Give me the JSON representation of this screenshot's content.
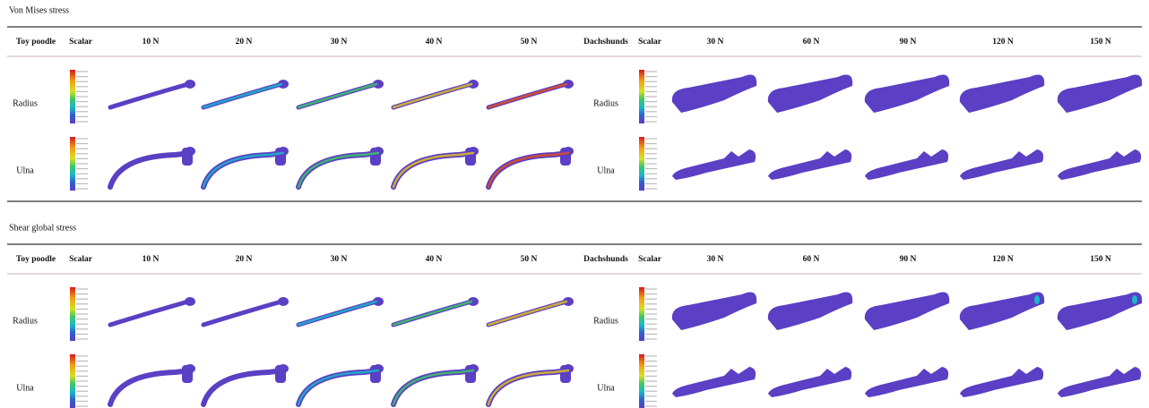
{
  "sections": [
    {
      "title": "Von Mises stress",
      "groups": [
        {
          "breed": "Toy poodle",
          "scalar": "Scalar",
          "forces": [
            "10 N",
            "20 N",
            "30 N",
            "40 N",
            "50 N"
          ],
          "rows": [
            "Radius",
            "Ulna"
          ]
        },
        {
          "breed": "Dachshunds",
          "scalar": "Scalar",
          "forces": [
            "30 N",
            "60 N",
            "90 N",
            "120 N",
            "150 N"
          ],
          "rows": [
            "Radius",
            "Ulna"
          ]
        }
      ]
    },
    {
      "title": "Shear global stress",
      "groups": [
        {
          "breed": "Toy poodle",
          "scalar": "Scalar",
          "forces": [
            "10 N",
            "20 N",
            "30 N",
            "40 N",
            "50 N"
          ],
          "rows": [
            "Radius",
            "Ulna"
          ]
        },
        {
          "breed": "Dachshunds",
          "scalar": "Scalar",
          "forces": [
            "30 N",
            "60 N",
            "90 N",
            "120 N",
            "150 N"
          ],
          "rows": [
            "Radius",
            "Ulna"
          ]
        }
      ]
    }
  ]
}
